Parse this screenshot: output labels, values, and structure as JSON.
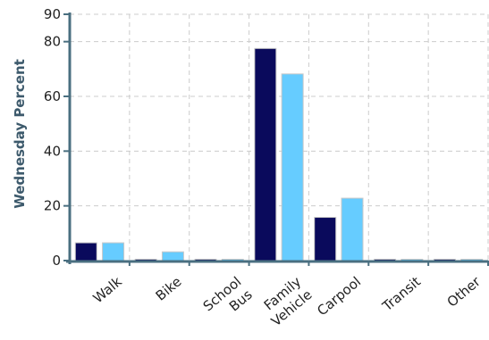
{
  "chart_data": {
    "type": "bar",
    "title": "",
    "xlabel": "",
    "ylabel": "Wednesday Percent",
    "ylim": [
      0,
      90
    ],
    "yticks": [
      0,
      20,
      40,
      60,
      80,
      90
    ],
    "grid": true,
    "legend": "none",
    "categories": [
      {
        "lines": [
          "Walk"
        ]
      },
      {
        "lines": [
          "Bike"
        ]
      },
      {
        "lines": [
          "School",
          "Bus"
        ]
      },
      {
        "lines": [
          "Family",
          "Vehicle"
        ]
      },
      {
        "lines": [
          "Carpool"
        ]
      },
      {
        "lines": [
          "Transit"
        ]
      },
      {
        "lines": [
          "Other"
        ]
      }
    ],
    "series": [
      {
        "color": "#0a0a5c",
        "values": [
          6.5,
          0.5,
          0.5,
          77.5,
          15.8,
          0.5,
          0.5
        ]
      },
      {
        "color": "#66ccff",
        "values": [
          6.5,
          3.2,
          0.3,
          68.2,
          22.8,
          0.3,
          0.3
        ]
      }
    ],
    "colors": {
      "axis": "#4a6f80",
      "grid": "#cccccc",
      "bar_outline": "#c8c8c8"
    }
  }
}
